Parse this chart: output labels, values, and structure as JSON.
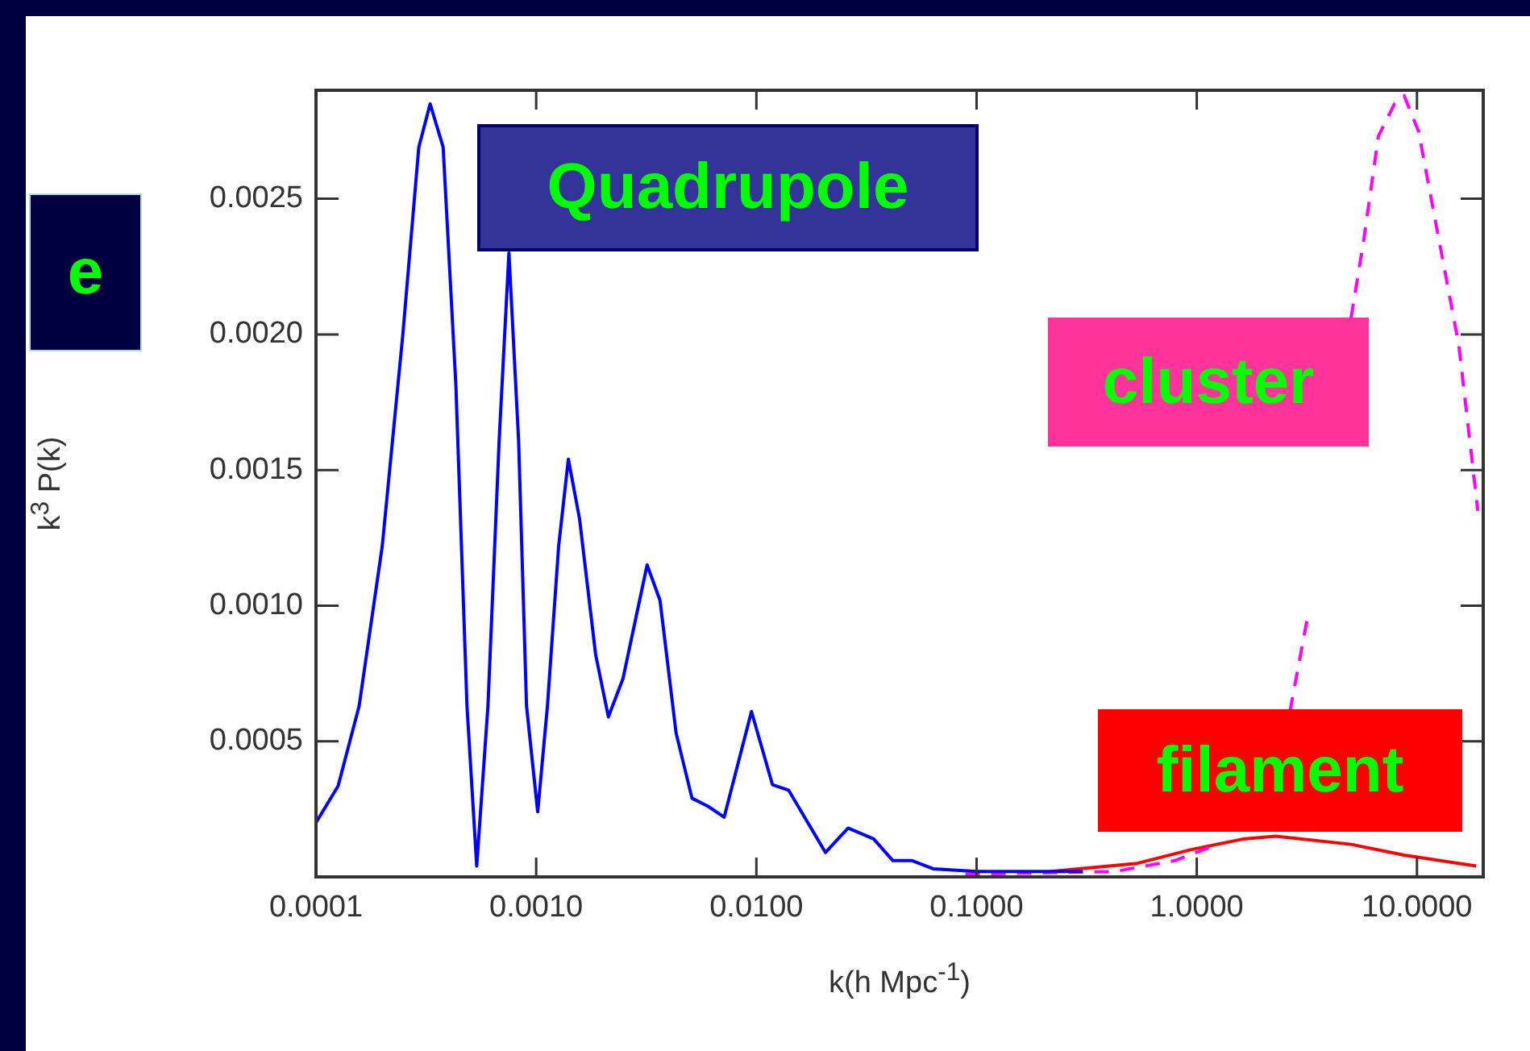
{
  "chart_data": {
    "type": "line",
    "xlabel": "k(h Mpc$^{-1}$)",
    "ylabel": "k$^{3}$ P(k)",
    "log": "x",
    "grid": false,
    "legend": false,
    "marker": "none",
    "xlim": [
      0.0001,
      20
    ],
    "ylim": [
      0,
      0.0029
    ],
    "xticks": [
      {
        "value": 0.0001,
        "label": "0.0001"
      },
      {
        "value": 0.001,
        "label": "0.0010"
      },
      {
        "value": 0.01,
        "label": "0.0100"
      },
      {
        "value": 0.1,
        "label": "0.1000"
      },
      {
        "value": 1,
        "label": "1.0000"
      },
      {
        "value": 10,
        "label": "10.0000"
      }
    ],
    "yticks": [
      0.0005,
      {
        "value": 0.001,
        "label": "0.0010"
      },
      0.0015,
      {
        "value": 0.002,
        "label": "0.0020"
      },
      0.0025
    ],
    "annotations": [
      "e"
    ],
    "series": [
      {
        "name": "Quadrupole",
        "color": "#0000ff",
        "line_style": "solid",
        "x": [
          0.0001,
          0.000126,
          0.000157,
          0.0002,
          0.000248,
          0.000293,
          0.00033,
          0.000378,
          0.000432,
          0.000485,
          0.000537,
          0.000604,
          0.000679,
          0.000752,
          0.000832,
          0.000904,
          0.001016,
          0.001125,
          0.001265,
          0.0014,
          0.001574,
          0.001862,
          0.002128,
          0.002477,
          0.00319,
          0.00365,
          0.00432,
          0.0051,
          0.00604,
          0.00714,
          0.0095,
          0.01183,
          0.014,
          0.0206,
          0.0261,
          0.0341,
          0.0417,
          0.051,
          0.0635,
          0.1,
          0.303
        ],
        "values": [
          0.0002,
          0.000335,
          0.00063,
          0.00122,
          0.002,
          0.00269,
          0.00285,
          0.00269,
          0.00181,
          0.00063,
          4e-05,
          0.00063,
          0.00161,
          0.0023,
          0.00161,
          0.00063,
          0.00024,
          0.00063,
          0.00122,
          0.00154,
          0.00132,
          0.00082,
          0.00059,
          0.00073,
          0.00115,
          0.00102,
          0.00053,
          0.00029,
          0.00026,
          0.00022,
          0.00061,
          0.00034,
          0.00032,
          9e-05,
          0.00018,
          0.00014,
          6e-05,
          6e-05,
          3e-05,
          2e-05,
          2e-05
        ]
      },
      {
        "name": "cluster",
        "color": "#ff00ff",
        "line_style": "dashed",
        "x": [
          0.089,
          0.425,
          0.794,
          1.245,
          2.06,
          2.65,
          3.19,
          4.25,
          5.02,
          5.74,
          6.68,
          7.91,
          8.75,
          10.16,
          12.25,
          15.5,
          18.9
        ],
        "values": [
          1e-05,
          2e-05,
          6e-05,
          0.00012,
          null,
          0.00061,
          0.00096,
          null,
          0.00206,
          0.00235,
          0.00273,
          0.00285,
          0.00288,
          0.00275,
          0.0024,
          0.00196,
          0.00135
        ]
      },
      {
        "name": "filament",
        "color": "#ff0000",
        "line_style": "solid",
        "x": [
          0.217,
          0.537,
          0.935,
          1.63,
          2.28,
          5.02,
          8.75,
          18.6
        ],
        "values": [
          2e-05,
          5e-05,
          0.0001,
          0.00014,
          0.00015,
          0.00012,
          8e-05,
          4e-05
        ]
      }
    ]
  }
}
